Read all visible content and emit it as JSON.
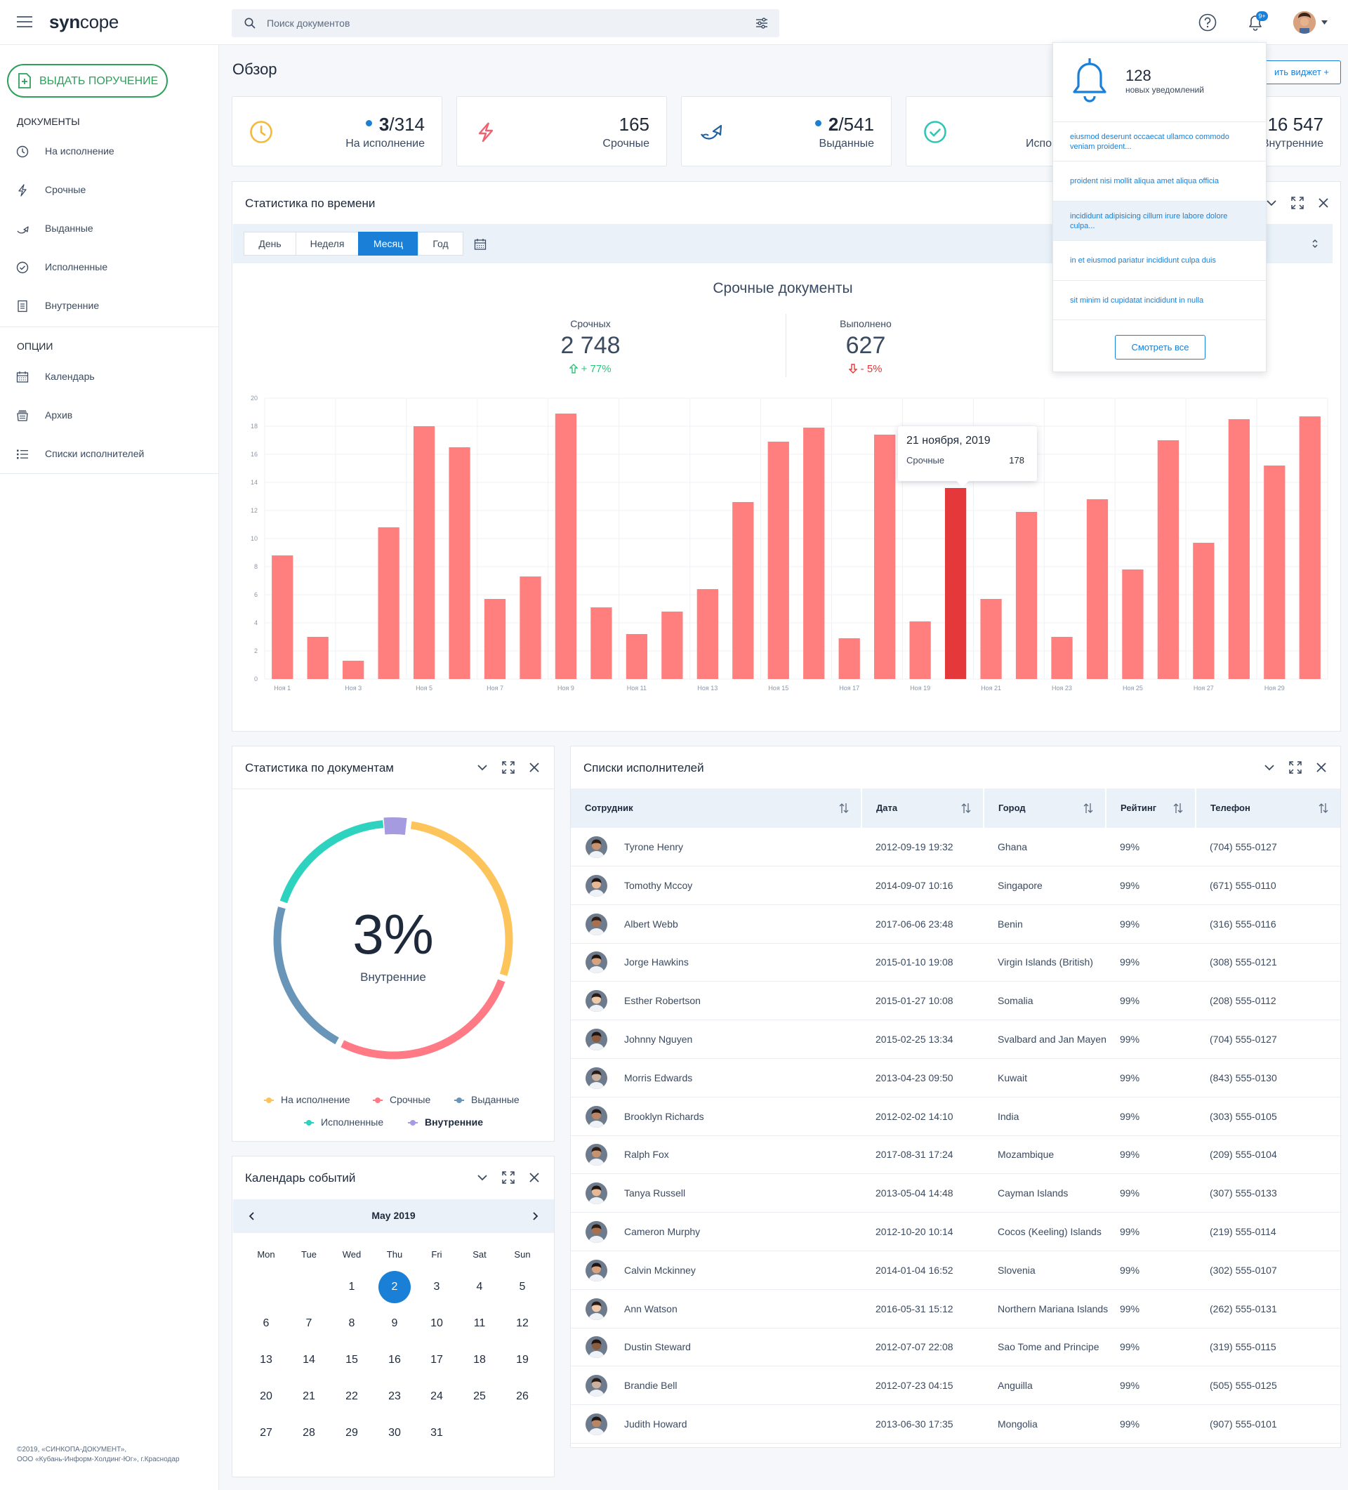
{
  "header": {
    "logo_part1": "syn",
    "logo_part2": "cope",
    "search_placeholder": "Поиск документов",
    "notif_badge": "9+"
  },
  "sidebar": {
    "issue_button": "ВЫДАТЬ ПОРУЧЕНИЕ",
    "docs_heading": "ДОКУМЕНТЫ",
    "docs": [
      {
        "label": "На исполнение",
        "icon": "clock-icon"
      },
      {
        "label": "Срочные",
        "icon": "lightning-icon"
      },
      {
        "label": "Выданные",
        "icon": "handoff-arrow-icon"
      },
      {
        "label": "Исполненные",
        "icon": "check-circle-icon"
      },
      {
        "label": "Внутренние",
        "icon": "document-list-icon"
      }
    ],
    "options_heading": "ОПЦИИ",
    "options": [
      {
        "label": "Календарь",
        "icon": "calendar-icon"
      },
      {
        "label": "Архив",
        "icon": "archive-icon"
      },
      {
        "label": "Списки исполнителей",
        "icon": "list-icon"
      }
    ],
    "footer_line1": "©2019, «СИНКОПА-ДОКУМЕНТ»,",
    "footer_line2": "ООО «Кубань-Информ-Холдинг-Юг», г.Краснодар"
  },
  "page": {
    "title": "Обзор",
    "add_widget": "ить виджет +"
  },
  "stats": [
    {
      "prefix": "3",
      "suffix": "/314",
      "label": "На исполнение",
      "dot": true,
      "color": "#f5b93a"
    },
    {
      "prefix": "",
      "suffix": "165",
      "label": "Срочные",
      "dot": false,
      "color": "#f06270"
    },
    {
      "prefix": "2",
      "suffix": "/541",
      "label": "Выданные",
      "dot": true,
      "color": "#1e5fa0"
    },
    {
      "prefix": "",
      "suffix": "",
      "label": "Испо",
      "dot": false,
      "color": "#2ec7b5"
    },
    {
      "prefix": "",
      "suffix": "16 547",
      "label": "Внутренние",
      "dot": false,
      "color": "#a49be0"
    }
  ],
  "time_stats": {
    "title": "Статистика по времени",
    "tabs": [
      "День",
      "Неделя",
      "Месяц",
      "Год"
    ],
    "active_tab": "Месяц",
    "chart_title": "Срочные документы",
    "kpi1_label": "Срочных",
    "kpi1_value": "2 748",
    "kpi1_delta": "+ 77%",
    "kpi2_label": "Выполнено",
    "kpi2_value": "627",
    "kpi2_delta": "- 5%",
    "tooltip_date": "21 ноября, 2019",
    "tooltip_label": "Срочные",
    "tooltip_value": "178"
  },
  "chart_data": {
    "type": "bar",
    "title": "Срочные документы",
    "categories": [
      "Ноя 1",
      "Ноя 2",
      "Ноя 3",
      "Ноя 4",
      "Ноя 5",
      "Ноя 6",
      "Ноя 7",
      "Ноя 8",
      "Ноя 9",
      "Ноя 10",
      "Ноя 11",
      "Ноя 12",
      "Ноя 13",
      "Ноя 14",
      "Ноя 15",
      "Ноя 16",
      "Ноя 17",
      "Ноя 18",
      "Ноя 19",
      "Ноя 20",
      "Ноя 21",
      "Ноя 22",
      "Ноя 23",
      "Ноя 24",
      "Ноя 25",
      "Ноя 26",
      "Ноя 27",
      "Ноя 28",
      "Ноя 29",
      "Ноя 30"
    ],
    "tick_labels": [
      "Ноя 1",
      "Ноя 3",
      "Ноя 5",
      "Ноя 7",
      "Ноя 9",
      "Ноя 11",
      "Ноя 13",
      "Ноя 15",
      "Ноя 17",
      "Ноя 19",
      "Ноя 21",
      "Ноя 23",
      "Ноя 25",
      "Ноя 27",
      "Ноя 29"
    ],
    "values": [
      8.8,
      3.0,
      1.3,
      10.8,
      18.0,
      16.5,
      5.7,
      7.3,
      18.9,
      5.1,
      3.2,
      4.8,
      6.4,
      12.6,
      16.9,
      17.9,
      2.9,
      17.4,
      4.1,
      13.6,
      5.7,
      11.9,
      3.0,
      12.8,
      7.8,
      17.0,
      9.7,
      18.5,
      15.2,
      18.7
    ],
    "highlight_index": 19,
    "ylim": [
      0,
      20
    ],
    "yticks": [
      0,
      2,
      4,
      6,
      8,
      10,
      12,
      14,
      16,
      18,
      20
    ],
    "grid": true,
    "color": "#ff7f7f",
    "highlight_color": "#e5383b"
  },
  "notifications": {
    "count": "128",
    "subtitle": "новых уведомлений",
    "items": [
      "eiusmod deserunt occaecat ullamco commodo veniam proident...",
      "proident nisi mollit aliqua amet aliqua officia",
      "incididunt adipisicing cillum irure labore dolore culpa...",
      "in et eiusmod pariatur incididunt culpa duis",
      "sit minim id cupidatat incididunt in nulla"
    ],
    "see_all": "Смотреть все"
  },
  "doc_stats": {
    "title": "Статистика по документам",
    "percent": "3%",
    "center_label": "Внутренние",
    "legend": [
      {
        "label": "На исполнение",
        "color": "#fcc45b"
      },
      {
        "label": "Срочные",
        "color": "#ff7a85"
      },
      {
        "label": "Выданные",
        "color": "#6895b8"
      },
      {
        "label": "Исполненные",
        "color": "#2ed3c0"
      },
      {
        "label": "Внутренние",
        "color": "#a49be0"
      }
    ],
    "donut_values": [
      28,
      27,
      22,
      19,
      3
    ]
  },
  "calendar": {
    "title": "Календарь событий",
    "month": "May 2019",
    "weekdays": [
      "Mon",
      "Tue",
      "Wed",
      "Thu",
      "Fri",
      "Sat",
      "Sun"
    ],
    "first_weekday_index": 2,
    "days_in_month": 31,
    "selected": 2
  },
  "executors": {
    "title": "Списки исполнителей",
    "columns": [
      "Сотрудник",
      "Дата",
      "Город",
      "Рейтинг",
      "Телефон"
    ],
    "rows": [
      {
        "name": "Tyrone Henry",
        "date": "2012-09-19 19:32",
        "city": "Ghana",
        "rating": "99%",
        "phone": "(704) 555-0127"
      },
      {
        "name": "Tomothy Mccoy",
        "date": "2014-09-07 10:16",
        "city": "Singapore",
        "rating": "99%",
        "phone": "(671) 555-0110"
      },
      {
        "name": "Albert Webb",
        "date": "2017-06-06 23:48",
        "city": "Benin",
        "rating": "99%",
        "phone": "(316) 555-0116"
      },
      {
        "name": "Jorge Hawkins",
        "date": "2015-01-10 19:08",
        "city": "Virgin Islands (British)",
        "rating": "99%",
        "phone": "(308) 555-0121"
      },
      {
        "name": "Esther Robertson",
        "date": "2015-01-27 10:08",
        "city": "Somalia",
        "rating": "99%",
        "phone": "(208) 555-0112"
      },
      {
        "name": "Johnny Nguyen",
        "date": "2015-02-25 13:34",
        "city": "Svalbard and Jan Mayen",
        "rating": "99%",
        "phone": "(704) 555-0127"
      },
      {
        "name": "Morris Edwards",
        "date": "2013-04-23 09:50",
        "city": "Kuwait",
        "rating": "99%",
        "phone": "(843) 555-0130"
      },
      {
        "name": "Brooklyn Richards",
        "date": "2012-02-02 14:10",
        "city": "India",
        "rating": "99%",
        "phone": "(303) 555-0105"
      },
      {
        "name": "Ralph Fox",
        "date": "2017-08-31 17:24",
        "city": "Mozambique",
        "rating": "99%",
        "phone": "(209) 555-0104"
      },
      {
        "name": "Tanya Russell",
        "date": "2013-05-04 14:48",
        "city": "Cayman Islands",
        "rating": "99%",
        "phone": "(307) 555-0133"
      },
      {
        "name": "Cameron Murphy",
        "date": "2012-10-20 10:14",
        "city": "Cocos (Keeling) Islands",
        "rating": "99%",
        "phone": "(219) 555-0114"
      },
      {
        "name": "Calvin Mckinney",
        "date": "2014-01-04 16:52",
        "city": "Slovenia",
        "rating": "99%",
        "phone": "(302) 555-0107"
      },
      {
        "name": "Ann Watson",
        "date": "2016-05-31 15:12",
        "city": "Northern Mariana Islands",
        "rating": "99%",
        "phone": "(262) 555-0131"
      },
      {
        "name": "Dustin Steward",
        "date": "2012-07-07 22:08",
        "city": "Sao Tome and Principe",
        "rating": "99%",
        "phone": "(319) 555-0115"
      },
      {
        "name": "Brandie Bell",
        "date": "2012-07-23 04:15",
        "city": "Anguilla",
        "rating": "99%",
        "phone": "(505) 555-0125"
      },
      {
        "name": "Judith Howard",
        "date": "2013-06-30 17:35",
        "city": "Mongolia",
        "rating": "99%",
        "phone": "(907) 555-0101"
      }
    ]
  }
}
